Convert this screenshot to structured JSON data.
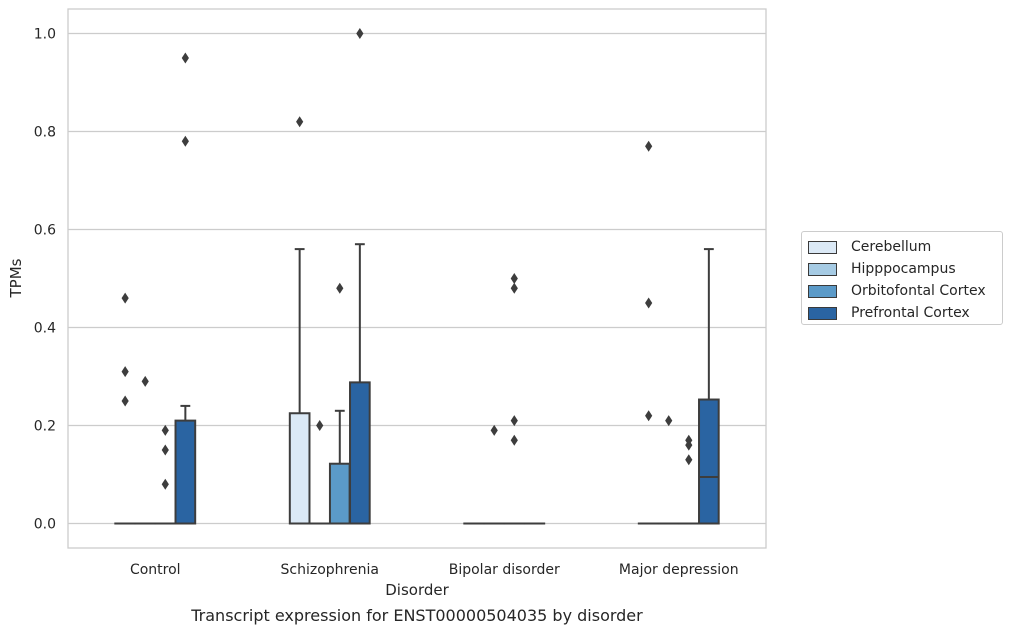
{
  "caption": "Transcript expression for ENST00000504035 by disorder",
  "chart_data": {
    "type": "box",
    "title": "",
    "xlabel": "Disorder",
    "ylabel": "TPMs",
    "ylim": [
      -0.05,
      1.05
    ],
    "yticks": [
      0.0,
      0.2,
      0.4,
      0.6,
      0.8,
      1.0
    ],
    "ytick_labels": [
      "0.0",
      "0.2",
      "0.4",
      "0.6",
      "0.8",
      "1.0"
    ],
    "grid": true,
    "legend_position": "right",
    "categories": [
      "Control",
      "Schizophrenia",
      "Bipolar disorder",
      "Major depression"
    ],
    "series": [
      {
        "name": "Cerebellum",
        "color": "#dbe9f6",
        "boxes": [
          {
            "q1": 0,
            "median": 0,
            "q3": 0,
            "whisker_low": 0,
            "whisker_high": 0,
            "outliers": [
              0.46,
              0.31,
              0.25
            ]
          },
          {
            "q1": 0,
            "median": 0,
            "q3": 0.225,
            "whisker_low": 0,
            "whisker_high": 0.56,
            "outliers": [
              0.82
            ]
          },
          {
            "q1": 0,
            "median": 0,
            "q3": 0,
            "whisker_low": 0,
            "whisker_high": 0,
            "outliers": []
          },
          {
            "q1": 0,
            "median": 0,
            "q3": 0,
            "whisker_low": 0,
            "whisker_high": 0,
            "outliers": [
              0.77,
              0.45,
              0.22
            ]
          }
        ]
      },
      {
        "name": "Hipppocampus",
        "color": "#a6cbe4",
        "boxes": [
          {
            "q1": 0,
            "median": 0,
            "q3": 0,
            "whisker_low": 0,
            "whisker_high": 0,
            "outliers": [
              0.29
            ]
          },
          {
            "q1": 0,
            "median": 0,
            "q3": 0,
            "whisker_low": 0,
            "whisker_high": 0,
            "outliers": [
              0.2
            ]
          },
          {
            "q1": 0,
            "median": 0,
            "q3": 0,
            "whisker_low": 0,
            "whisker_high": 0,
            "outliers": [
              0.19
            ]
          },
          {
            "q1": 0,
            "median": 0,
            "q3": 0,
            "whisker_low": 0,
            "whisker_high": 0,
            "outliers": [
              0.21
            ]
          }
        ]
      },
      {
        "name": "Orbitofontal Cortex",
        "color": "#5b9ac8",
        "boxes": [
          {
            "q1": 0,
            "median": 0,
            "q3": 0,
            "whisker_low": 0,
            "whisker_high": 0,
            "outliers": [
              0.19,
              0.15,
              0.08
            ]
          },
          {
            "q1": 0,
            "median": 0,
            "q3": 0.122,
            "whisker_low": 0,
            "whisker_high": 0.23,
            "outliers": [
              0.48
            ]
          },
          {
            "q1": 0,
            "median": 0,
            "q3": 0,
            "whisker_low": 0,
            "whisker_high": 0,
            "outliers": [
              0.5,
              0.48,
              0.21,
              0.17
            ]
          },
          {
            "q1": 0,
            "median": 0,
            "q3": 0,
            "whisker_low": 0,
            "whisker_high": 0,
            "outliers": [
              0.17,
              0.16,
              0.13
            ]
          }
        ]
      },
      {
        "name": "Prefrontal Cortex",
        "color": "#2a64a2",
        "boxes": [
          {
            "q1": 0,
            "median": 0,
            "q3": 0.21,
            "whisker_low": 0,
            "whisker_high": 0.24,
            "outliers": [
              0.95,
              0.78
            ]
          },
          {
            "q1": 0,
            "median": 0,
            "q3": 0.288,
            "whisker_low": 0,
            "whisker_high": 0.57,
            "outliers": [
              1.0
            ]
          },
          {
            "q1": 0,
            "median": 0,
            "q3": 0,
            "whisker_low": 0,
            "whisker_high": 0,
            "outliers": []
          },
          {
            "q1": 0,
            "median": 0.095,
            "q3": 0.253,
            "whisker_low": 0,
            "whisker_high": 0.56,
            "outliers": []
          }
        ]
      }
    ]
  }
}
